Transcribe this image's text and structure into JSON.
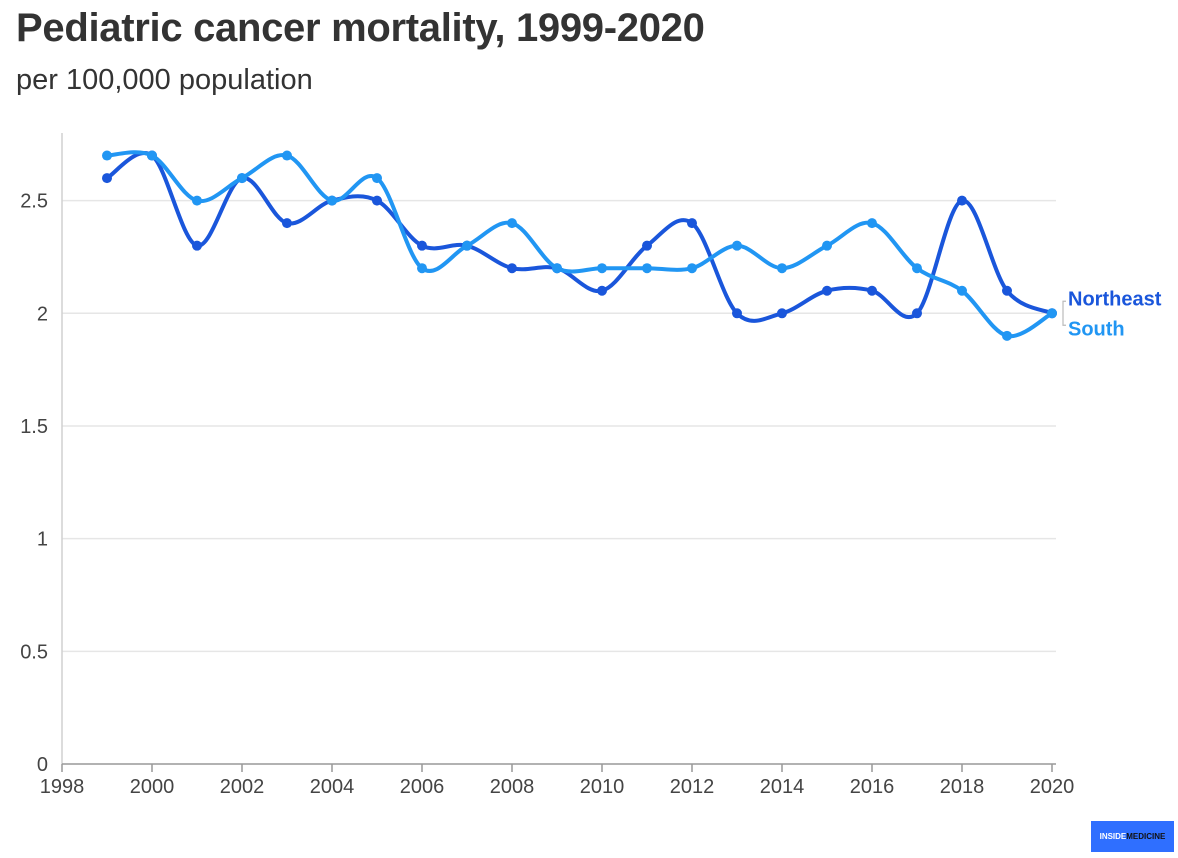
{
  "chart_data": {
    "type": "line",
    "title": "Pediatric cancer mortality, 1999-2020",
    "subtitle": "per 100,000 population",
    "x": [
      1999,
      2000,
      2001,
      2002,
      2003,
      2004,
      2005,
      2006,
      2007,
      2008,
      2009,
      2010,
      2011,
      2012,
      2013,
      2014,
      2015,
      2016,
      2017,
      2018,
      2019,
      2020
    ],
    "series": [
      {
        "name": "Northeast",
        "color": "#1a56db",
        "values": [
          2.6,
          2.7,
          2.3,
          2.6,
          2.4,
          2.5,
          2.5,
          2.3,
          2.3,
          2.2,
          2.2,
          2.1,
          2.3,
          2.4,
          2.0,
          2.0,
          2.1,
          2.1,
          2.0,
          2.5,
          2.1,
          2.0
        ]
      },
      {
        "name": "South",
        "color": "#2196f3",
        "values": [
          2.7,
          2.7,
          2.5,
          2.6,
          2.7,
          2.5,
          2.6,
          2.2,
          2.3,
          2.4,
          2.2,
          2.2,
          2.2,
          2.2,
          2.3,
          2.2,
          2.3,
          2.4,
          2.2,
          2.1,
          1.9,
          2.0
        ]
      }
    ],
    "xlim": [
      1998,
      2020
    ],
    "ylim": [
      0,
      2.8
    ],
    "x_ticks": [
      1998,
      2000,
      2002,
      2004,
      2006,
      2008,
      2010,
      2012,
      2014,
      2016,
      2018,
      2020
    ],
    "y_ticks": [
      0,
      0.5,
      1,
      1.5,
      2,
      2.5
    ],
    "y_tick_labels": [
      "0",
      "0.5",
      "1",
      "1.5",
      "2",
      "2.5"
    ],
    "grid": "horizontal",
    "legend": "direct labels at right end of lines"
  },
  "logo": {
    "part1": "INSIDE",
    "part2": "MEDICINE"
  }
}
